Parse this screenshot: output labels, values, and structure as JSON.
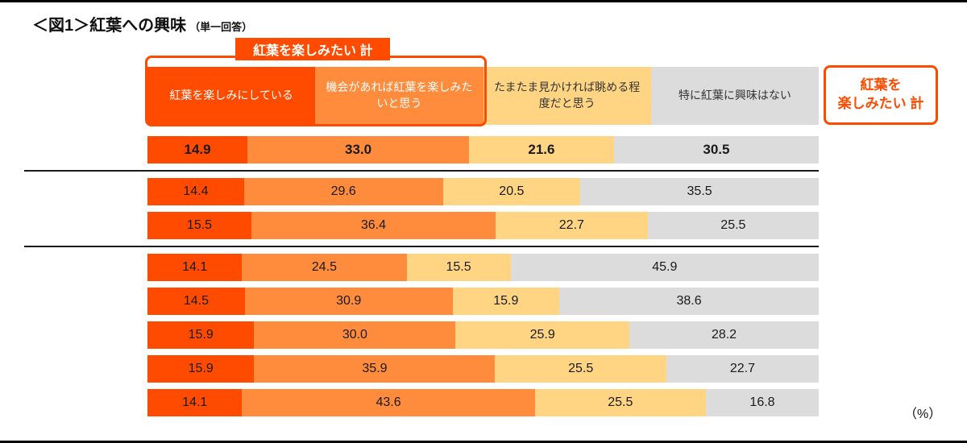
{
  "title": {
    "main": "＜図1＞紅葉への興味",
    "sub": "（単一回答）"
  },
  "overlays": {
    "group_tab_label": "紅葉を楽しみたい 計",
    "total_box_label": "紅葉を\n楽しみたい 計"
  },
  "chart_data": {
    "type": "bar",
    "stacked": true,
    "orientation": "horizontal",
    "unit": "%",
    "title": "＜図1＞紅葉への興味（単一回答）",
    "categories": [
      "紅葉を楽しみにしている",
      "機会があれば紅葉を楽しみたいと思う",
      "たまたま見かければ眺める程度だと思う",
      "特に紅葉に興味はない"
    ],
    "colors": [
      "#ff4b00",
      "#ff8c3d",
      "#ffd583",
      "#dcdcdc"
    ],
    "rows": [
      {
        "values": [
          14.9,
          33.0,
          21.6,
          30.5
        ],
        "bold": true
      },
      {
        "values": [
          14.4,
          29.6,
          20.5,
          35.5
        ],
        "bold": false
      },
      {
        "values": [
          15.5,
          36.4,
          22.7,
          25.5
        ],
        "bold": false
      },
      {
        "values": [
          14.1,
          24.5,
          15.5,
          45.9
        ],
        "bold": false
      },
      {
        "values": [
          14.5,
          30.9,
          15.9,
          38.6
        ],
        "bold": false
      },
      {
        "values": [
          15.9,
          30.0,
          25.9,
          28.2
        ],
        "bold": false
      },
      {
        "values": [
          15.9,
          35.9,
          25.5,
          22.7
        ],
        "bold": false
      },
      {
        "values": [
          14.1,
          43.6,
          25.5,
          16.8
        ],
        "bold": false
      }
    ],
    "separators_after_rows": [
      0,
      2
    ],
    "unit_label": "（%）",
    "legend_position": "top",
    "xlim": [
      0,
      100
    ],
    "grid": false
  }
}
